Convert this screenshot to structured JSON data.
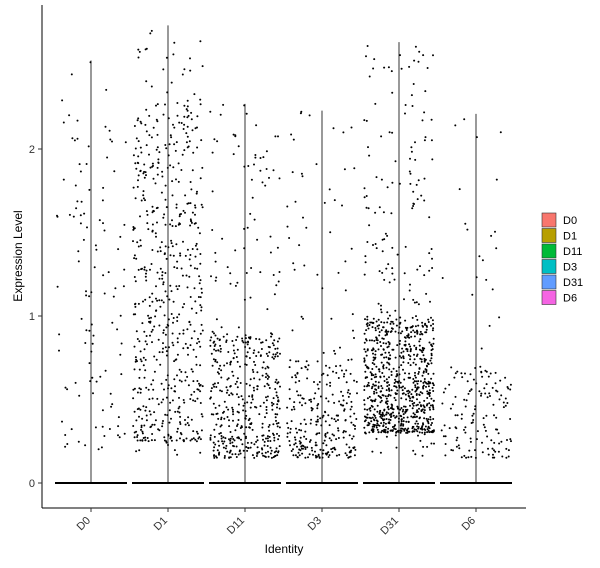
{
  "chart_data": {
    "type": "scatter",
    "subtype": "violin-jitter",
    "title": "",
    "xlabel": "Identity",
    "ylabel": "Expression Level",
    "categories": [
      "D0",
      "D1",
      "D11",
      "D3",
      "D31",
      "D6"
    ],
    "ylim": [
      -0.15,
      2.85
    ],
    "yticks": [
      0,
      1,
      2
    ],
    "grid": false,
    "legend": {
      "placement": "right",
      "entries": [
        {
          "label": "D0",
          "color": "#F8766D"
        },
        {
          "label": "D1",
          "color": "#B79F00"
        },
        {
          "label": "D11",
          "color": "#00BA38"
        },
        {
          "label": "D3",
          "color": "#00BFC4"
        },
        {
          "label": "D31",
          "color": "#619CFF"
        },
        {
          "label": "D6",
          "color": "#F564E3"
        }
      ]
    },
    "series": [
      {
        "category": "D0",
        "max": 2.53,
        "zero_fraction": 0.95,
        "dense_range": [
          0.2,
          2.5
        ],
        "nonzero_count": 110
      },
      {
        "category": "D1",
        "max": 2.74,
        "zero_fraction": 0.6,
        "dense_range": [
          0.25,
          2.3
        ],
        "nonzero_count": 600
      },
      {
        "category": "D11",
        "max": 2.27,
        "zero_fraction": 0.7,
        "dense_range": [
          0.15,
          0.9
        ],
        "nonzero_count": 480
      },
      {
        "category": "D3",
        "max": 2.23,
        "zero_fraction": 0.75,
        "dense_range": [
          0.15,
          0.75
        ],
        "nonzero_count": 300
      },
      {
        "category": "D31",
        "max": 2.64,
        "zero_fraction": 0.5,
        "dense_range": [
          0.3,
          1.0
        ],
        "nonzero_count": 900
      },
      {
        "category": "D6",
        "max": 2.21,
        "zero_fraction": 0.9,
        "dense_range": [
          0.15,
          0.7
        ],
        "nonzero_count": 160
      }
    ]
  }
}
